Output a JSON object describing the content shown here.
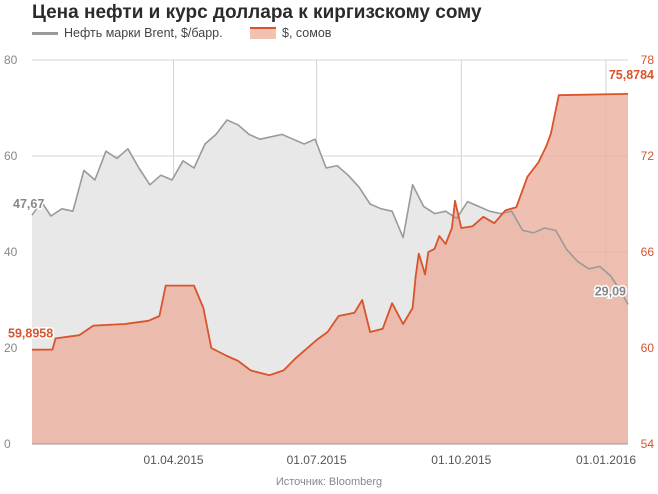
{
  "title": "Цена нефти и курс доллара к киргизскому сому",
  "source": "Источник: Bloomberg",
  "colors": {
    "oil_line": "#9a9a9a",
    "oil_fill": "#e8e8e8",
    "usd_line": "#d9532c",
    "usd_fill": "#ecb1a0"
  },
  "chart_data": {
    "type": "area",
    "title": "Цена нефти и курс доллара к киргизскому сому",
    "x_range": [
      "2015-01-01",
      "2016-01-15"
    ],
    "x_ticks": [
      {
        "date": "2015-04-01",
        "label": "01.04.2015"
      },
      {
        "date": "2015-07-01",
        "label": "01.07.2015"
      },
      {
        "date": "2015-10-01",
        "label": "01.10.2015"
      },
      {
        "date": "2016-01-01",
        "label": "01.01.2016"
      }
    ],
    "grid": true,
    "legend": "top-left",
    "left_axis": {
      "ylim": [
        0,
        80
      ],
      "ticks": [
        "0",
        "20",
        "40",
        "60",
        "80"
      ]
    },
    "right_axis": {
      "ylim": [
        54,
        78
      ],
      "ticks": [
        "54",
        "60",
        "66",
        "72",
        "78"
      ]
    },
    "series": [
      {
        "name": "Нефть марки Brent, $/барр.",
        "axis": "left",
        "start_label": "47,67",
        "end_label": "29,09",
        "points": [
          [
            "2015-01-01",
            47.67
          ],
          [
            "2015-01-07",
            50.5
          ],
          [
            "2015-01-13",
            47.5
          ],
          [
            "2015-01-20",
            49.0
          ],
          [
            "2015-01-27",
            48.5
          ],
          [
            "2015-02-03",
            57.0
          ],
          [
            "2015-02-10",
            55.0
          ],
          [
            "2015-02-17",
            61.0
          ],
          [
            "2015-02-24",
            59.5
          ],
          [
            "2015-03-03",
            61.5
          ],
          [
            "2015-03-10",
            57.5
          ],
          [
            "2015-03-17",
            54.0
          ],
          [
            "2015-03-24",
            56.0
          ],
          [
            "2015-03-31",
            55.0
          ],
          [
            "2015-04-07",
            59.0
          ],
          [
            "2015-04-14",
            57.5
          ],
          [
            "2015-04-21",
            62.5
          ],
          [
            "2015-04-28",
            64.5
          ],
          [
            "2015-05-05",
            67.5
          ],
          [
            "2015-05-12",
            66.5
          ],
          [
            "2015-05-19",
            64.5
          ],
          [
            "2015-05-26",
            63.5
          ],
          [
            "2015-06-02",
            64.0
          ],
          [
            "2015-06-09",
            64.5
          ],
          [
            "2015-06-16",
            63.5
          ],
          [
            "2015-06-23",
            62.5
          ],
          [
            "2015-06-30",
            63.5
          ],
          [
            "2015-07-07",
            57.5
          ],
          [
            "2015-07-14",
            58.0
          ],
          [
            "2015-07-21",
            56.0
          ],
          [
            "2015-07-28",
            53.5
          ],
          [
            "2015-08-04",
            50.0
          ],
          [
            "2015-08-11",
            49.0
          ],
          [
            "2015-08-18",
            48.5
          ],
          [
            "2015-08-25",
            43.0
          ],
          [
            "2015-08-31",
            54.0
          ],
          [
            "2015-09-07",
            49.5
          ],
          [
            "2015-09-14",
            48.0
          ],
          [
            "2015-09-21",
            48.5
          ],
          [
            "2015-09-28",
            47.0
          ],
          [
            "2015-10-05",
            50.5
          ],
          [
            "2015-10-12",
            49.5
          ],
          [
            "2015-10-19",
            48.5
          ],
          [
            "2015-10-26",
            48.0
          ],
          [
            "2015-11-02",
            48.5
          ],
          [
            "2015-11-09",
            44.5
          ],
          [
            "2015-11-16",
            44.0
          ],
          [
            "2015-11-23",
            45.0
          ],
          [
            "2015-11-30",
            44.5
          ],
          [
            "2015-12-07",
            40.5
          ],
          [
            "2015-12-14",
            38.0
          ],
          [
            "2015-12-21",
            36.5
          ],
          [
            "2015-12-28",
            37.0
          ],
          [
            "2016-01-04",
            35.0
          ],
          [
            "2016-01-11",
            31.5
          ],
          [
            "2016-01-15",
            29.09
          ]
        ]
      },
      {
        "name": "$, сомов",
        "axis": "right",
        "start_label": "59,8958",
        "end_label": "75,8784",
        "points": [
          [
            "2015-01-01",
            59.8958
          ],
          [
            "2015-01-14",
            59.9
          ],
          [
            "2015-01-16",
            60.6
          ],
          [
            "2015-01-31",
            60.8
          ],
          [
            "2015-02-09",
            61.4
          ],
          [
            "2015-03-01",
            61.5
          ],
          [
            "2015-03-16",
            61.7
          ],
          [
            "2015-03-23",
            62.0
          ],
          [
            "2015-03-27",
            63.9
          ],
          [
            "2015-04-14",
            63.9
          ],
          [
            "2015-04-20",
            62.5
          ],
          [
            "2015-04-25",
            60.0
          ],
          [
            "2015-05-05",
            59.5
          ],
          [
            "2015-05-12",
            59.2
          ],
          [
            "2015-05-20",
            58.6
          ],
          [
            "2015-06-01",
            58.3
          ],
          [
            "2015-06-10",
            58.6
          ],
          [
            "2015-06-17",
            59.3
          ],
          [
            "2015-06-24",
            59.9
          ],
          [
            "2015-07-01",
            60.5
          ],
          [
            "2015-07-08",
            61.0
          ],
          [
            "2015-07-15",
            62.0
          ],
          [
            "2015-07-25",
            62.2
          ],
          [
            "2015-07-30",
            63.0
          ],
          [
            "2015-08-04",
            61.0
          ],
          [
            "2015-08-12",
            61.2
          ],
          [
            "2015-08-18",
            62.8
          ],
          [
            "2015-08-25",
            61.5
          ],
          [
            "2015-08-31",
            62.5
          ],
          [
            "2015-09-02",
            64.5
          ],
          [
            "2015-09-04",
            65.9
          ],
          [
            "2015-09-08",
            64.6
          ],
          [
            "2015-09-10",
            66.0
          ],
          [
            "2015-09-14",
            66.2
          ],
          [
            "2015-09-17",
            67.0
          ],
          [
            "2015-09-21",
            66.5
          ],
          [
            "2015-09-25",
            67.5
          ],
          [
            "2015-09-27",
            69.2
          ],
          [
            "2015-10-01",
            67.5
          ],
          [
            "2015-10-08",
            67.6
          ],
          [
            "2015-10-15",
            68.2
          ],
          [
            "2015-10-22",
            67.8
          ],
          [
            "2015-10-29",
            68.6
          ],
          [
            "2015-11-05",
            68.8
          ],
          [
            "2015-11-12",
            70.7
          ],
          [
            "2015-11-19",
            71.6
          ],
          [
            "2015-11-24",
            72.6
          ],
          [
            "2015-11-27",
            73.4
          ],
          [
            "2015-12-02",
            75.8
          ],
          [
            "2016-01-15",
            75.8784
          ]
        ]
      }
    ]
  }
}
